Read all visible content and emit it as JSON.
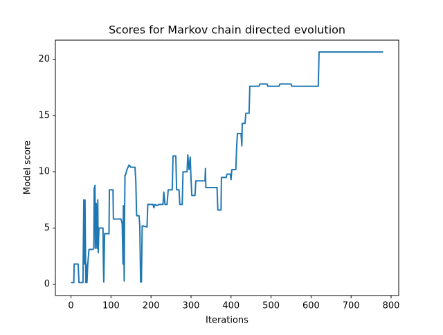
{
  "chart_data": {
    "type": "line",
    "title": "Scores for Markov chain directed evolution",
    "xlabel": "Iterations",
    "ylabel": "Model score",
    "x": [
      0,
      7,
      8,
      18,
      20,
      30,
      32,
      33,
      35,
      36,
      37,
      38,
      40,
      42,
      45,
      55,
      57,
      58,
      60,
      61,
      63,
      65,
      67,
      68,
      70,
      72,
      80,
      81,
      82,
      84,
      95,
      96,
      105,
      106,
      125,
      128,
      130,
      131,
      133,
      134,
      135,
      136,
      140,
      145,
      150,
      160,
      162,
      164,
      170,
      172,
      174,
      176,
      178,
      190,
      192,
      205,
      207,
      210,
      215,
      220,
      230,
      232,
      235,
      240,
      243,
      253,
      255,
      262,
      264,
      270,
      272,
      278,
      280,
      290,
      292,
      295,
      298,
      300,
      302,
      310,
      312,
      335,
      336,
      337,
      365,
      367,
      375,
      376,
      388,
      390,
      398,
      400,
      402,
      412,
      414,
      416,
      425,
      427,
      428,
      435,
      437,
      445,
      447,
      470,
      472,
      490,
      492,
      520,
      522,
      550,
      552,
      618,
      620,
      780
    ],
    "values": [
      0.15,
      0.15,
      1.8,
      1.8,
      0.15,
      0.15,
      7.5,
      1.8,
      7.5,
      4.0,
      0.15,
      1.8,
      0.15,
      1.8,
      3.1,
      3.1,
      3.2,
      8.5,
      8.8,
      3.2,
      7.2,
      3.2,
      7.5,
      2.8,
      5.0,
      5.0,
      5.0,
      1.8,
      0.2,
      4.5,
      4.5,
      8.4,
      8.4,
      5.8,
      5.8,
      5.4,
      1.8,
      7.0,
      0.3,
      6.5,
      9.7,
      9.7,
      10.2,
      10.6,
      10.4,
      10.4,
      9.2,
      6.1,
      6.1,
      5.2,
      0.2,
      0.2,
      5.2,
      5.1,
      7.1,
      7.1,
      6.8,
      7.1,
      7.0,
      7.1,
      7.1,
      8.2,
      7.1,
      7.1,
      8.4,
      8.4,
      11.4,
      11.4,
      8.4,
      8.4,
      7.1,
      7.1,
      10.0,
      10.0,
      11.5,
      10.2,
      11.3,
      9.4,
      7.9,
      7.9,
      9.2,
      9.2,
      10.3,
      8.6,
      8.6,
      6.6,
      6.6,
      9.5,
      9.5,
      9.8,
      9.8,
      9.3,
      10.2,
      10.2,
      12.2,
      13.4,
      13.4,
      12.3,
      14.3,
      14.3,
      15.2,
      15.2,
      17.6,
      17.6,
      17.8,
      17.8,
      17.6,
      17.6,
      17.8,
      17.8,
      17.6,
      17.6,
      20.65,
      20.65
    ],
    "color": "#1f77b4",
    "xlim": [
      -39,
      819
    ],
    "xticks": [
      0,
      100,
      200,
      300,
      400,
      500,
      600,
      700,
      800
    ],
    "ylim": [
      -1.0,
      21.7
    ],
    "yticks": [
      0,
      5,
      10,
      15,
      20
    ]
  }
}
